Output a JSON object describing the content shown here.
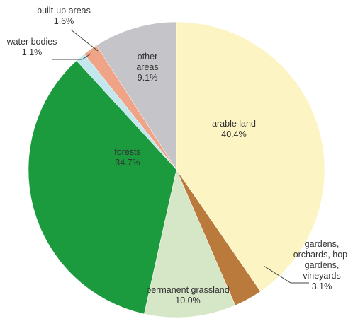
{
  "chart_data": {
    "type": "pie",
    "categories": [
      "arable land",
      "gardens, orchards, hop-gardens, vineyards",
      "permanent grassland",
      "forests",
      "water bodies",
      "built-up areas",
      "other areas"
    ],
    "values": [
      40.4,
      3.1,
      10.0,
      34.7,
      1.1,
      1.6,
      9.1
    ],
    "value_labels": [
      "40.4%",
      "3.1%",
      "10.0%",
      "34.7%",
      "1.1%",
      "1.6%",
      "9.1%"
    ],
    "colors": [
      "#fcf4c2",
      "#b97a3c",
      "#d5e7c6",
      "#1c9a3e",
      "#c3e7ee",
      "#efa487",
      "#c5c5c9"
    ]
  }
}
